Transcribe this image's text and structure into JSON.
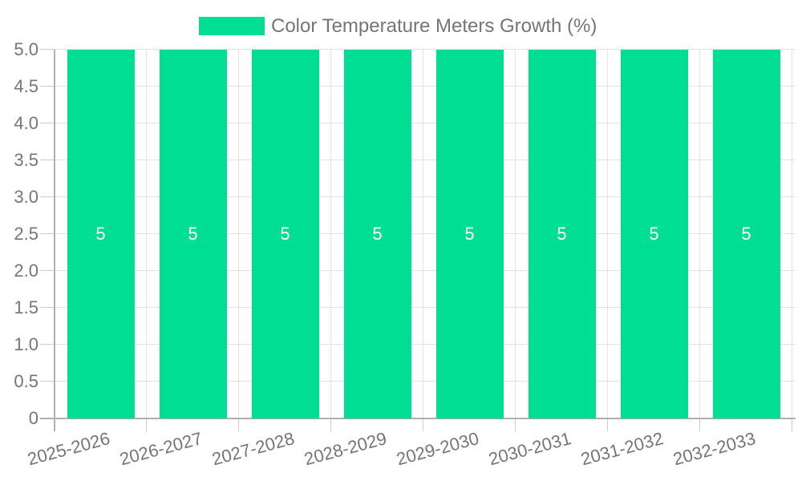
{
  "legend": {
    "label": "Color Temperature Meters Growth (%)"
  },
  "chart_data": {
    "type": "bar",
    "title": "Color Temperature Meters Growth (%)",
    "categories": [
      "2025-2026",
      "2026-2027",
      "2027-2028",
      "2028-2029",
      "2029-2030",
      "2030-2031",
      "2031-2032",
      "2032-2033"
    ],
    "series": [
      {
        "name": "Color Temperature Meters Growth (%)",
        "values": [
          5,
          5,
          5,
          5,
          5,
          5,
          5,
          5
        ]
      }
    ],
    "value_labels": [
      "5",
      "5",
      "5",
      "5",
      "5",
      "5",
      "5",
      "5"
    ],
    "xlabel": "",
    "ylabel": "",
    "ylim": [
      0,
      5
    ],
    "ytick_step": 0.5,
    "yticks": [
      {
        "value": 0,
        "label": "0"
      },
      {
        "value": 0.5,
        "label": "0.5"
      },
      {
        "value": 1,
        "label": "1.0"
      },
      {
        "value": 1.5,
        "label": "1.5"
      },
      {
        "value": 2,
        "label": "2.0"
      },
      {
        "value": 2.5,
        "label": "2.5"
      },
      {
        "value": 3,
        "label": "3.0"
      },
      {
        "value": 3.5,
        "label": "3.5"
      },
      {
        "value": 4,
        "label": "4.0"
      },
      {
        "value": 4.5,
        "label": "4.5"
      },
      {
        "value": 5,
        "label": "5.0"
      }
    ],
    "grid": true,
    "legend_position": "top",
    "colors": {
      "bar": "#00DE94",
      "text": "#757575",
      "axis": "#b0b0b0",
      "gridline": "#e2e2e2",
      "tick": "#cccccc",
      "value_text": "#ffffff",
      "background": "#ffffff"
    }
  }
}
